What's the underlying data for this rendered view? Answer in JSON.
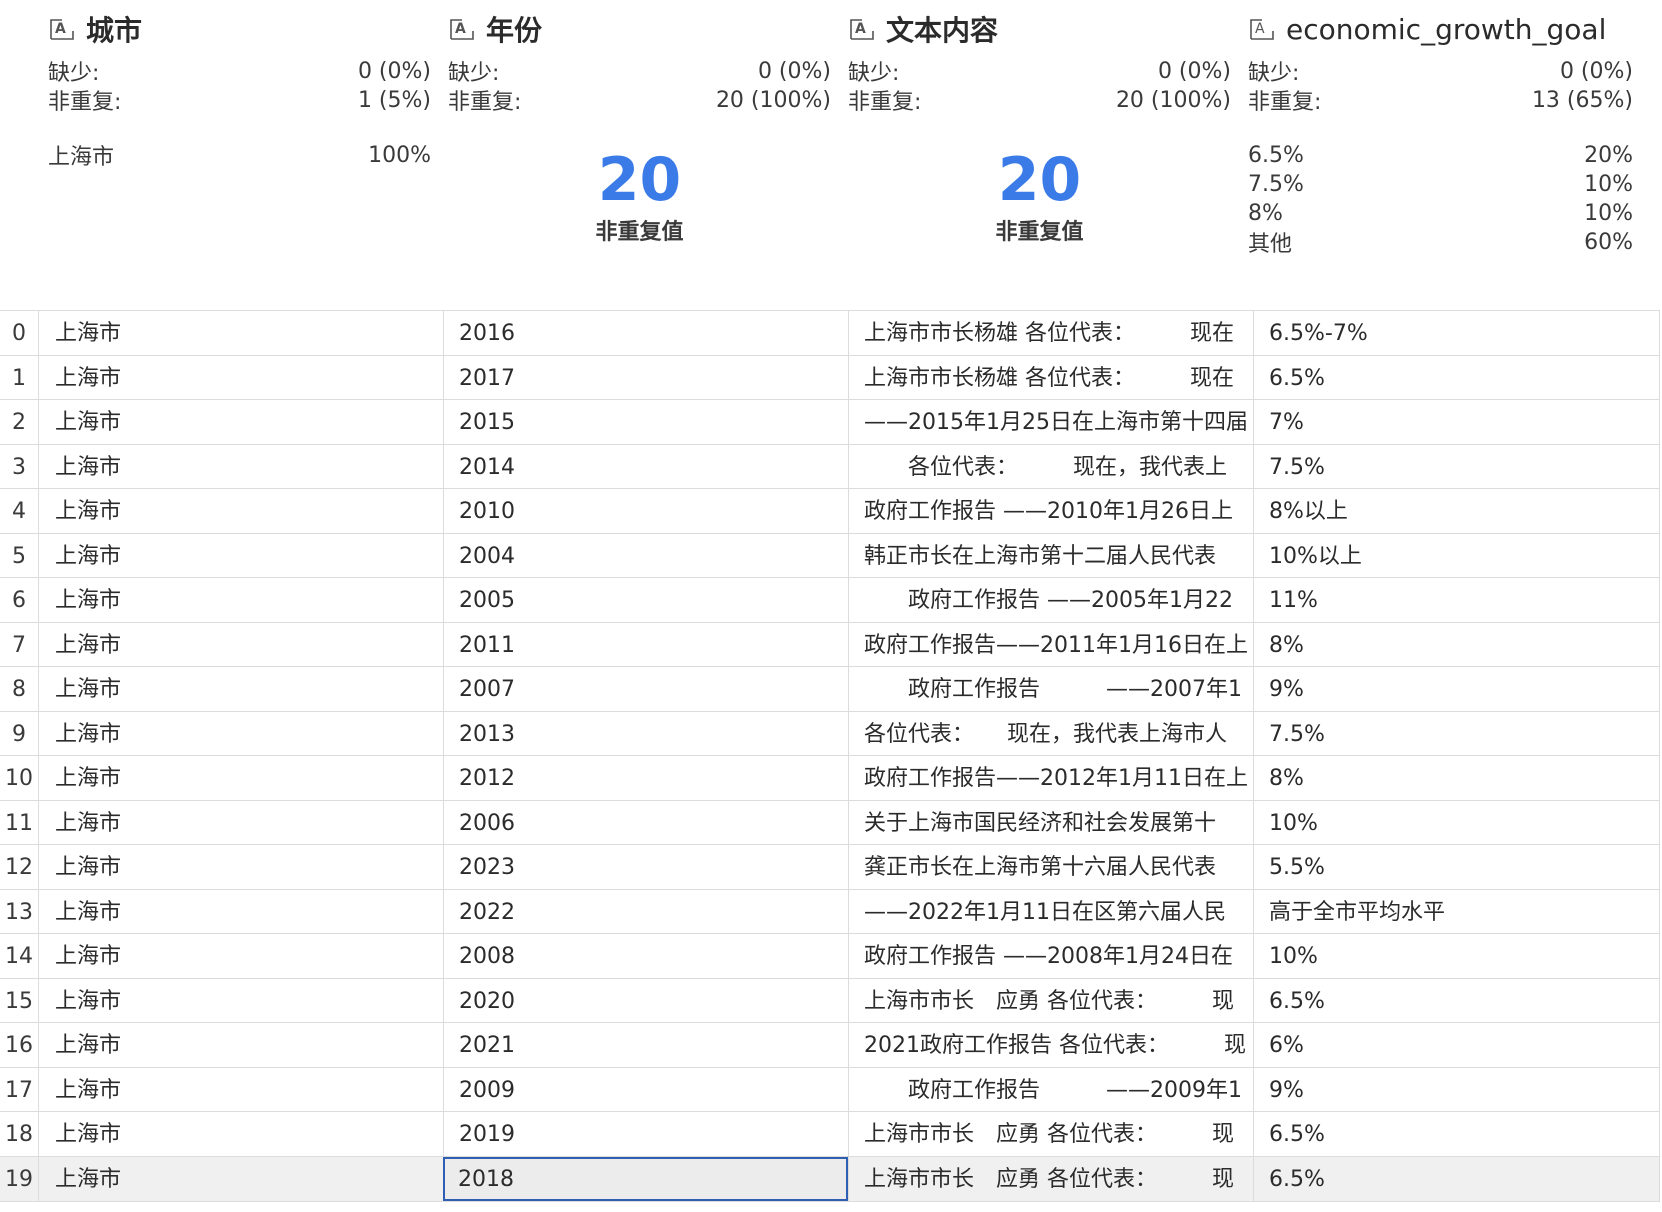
{
  "columns": [
    {
      "title": "城市",
      "missing_label": "缺少:",
      "missing_value": "0 (0%)",
      "distinct_label": "非重复:",
      "distinct_value": "1 (5%)",
      "top_values": [
        {
          "label": "上海市",
          "value": "100%"
        }
      ]
    },
    {
      "title": "年份",
      "missing_label": "缺少:",
      "missing_value": "0 (0%)",
      "distinct_label": "非重复:",
      "distinct_value": "20 (100%)",
      "unique_count": "20",
      "unique_caption": "非重复值"
    },
    {
      "title": "文本内容",
      "missing_label": "缺少:",
      "missing_value": "0 (0%)",
      "distinct_label": "非重复:",
      "distinct_value": "20 (100%)",
      "unique_count": "20",
      "unique_caption": "非重复值"
    },
    {
      "title": "economic_growth_goal",
      "missing_label": "缺少:",
      "missing_value": "0 (0%)",
      "distinct_label": "非重复:",
      "distinct_value": "13 (65%)",
      "top_values": [
        {
          "label": "6.5%",
          "value": "20%"
        },
        {
          "label": "7.5%",
          "value": "10%"
        },
        {
          "label": "8%",
          "value": "10%"
        },
        {
          "label": "其他",
          "value": "60%"
        }
      ]
    }
  ],
  "rows": [
    {
      "index": "0",
      "city": "上海市",
      "year": "2016",
      "text": "上海市市长杨雄 各位代表：　　　现在",
      "goal": "6.5%-7%"
    },
    {
      "index": "1",
      "city": "上海市",
      "year": "2017",
      "text": "上海市市长杨雄 各位代表：　　　现在",
      "goal": "6.5%"
    },
    {
      "index": "2",
      "city": "上海市",
      "year": "2015",
      "text": "——2015年1月25日在上海市第十四届",
      "goal": "7%"
    },
    {
      "index": "3",
      "city": "上海市",
      "year": "2014",
      "text": "　　各位代表：　　　现在，我代表上",
      "goal": "7.5%"
    },
    {
      "index": "4",
      "city": "上海市",
      "year": "2010",
      "text": "政府工作报告 ——2010年1月26日上",
      "goal": "8%以上"
    },
    {
      "index": "5",
      "city": "上海市",
      "year": "2004",
      "text": "韩正市长在上海市第十二届人民代表",
      "goal": "10%以上"
    },
    {
      "index": "6",
      "city": "上海市",
      "year": "2005",
      "text": "　　政府工作报告 ——2005年1月22",
      "goal": "11%"
    },
    {
      "index": "7",
      "city": "上海市",
      "year": "2011",
      "text": "政府工作报告——2011年1月16日在上",
      "goal": "8%"
    },
    {
      "index": "8",
      "city": "上海市",
      "year": "2007",
      "text": "　　政府工作报告　　　——2007年1",
      "goal": "9%"
    },
    {
      "index": "9",
      "city": "上海市",
      "year": "2013",
      "text": "各位代表：　　现在，我代表上海市人",
      "goal": "7.5%"
    },
    {
      "index": "10",
      "city": "上海市",
      "year": "2012",
      "text": "政府工作报告——2012年1月11日在上",
      "goal": "8%"
    },
    {
      "index": "11",
      "city": "上海市",
      "year": "2006",
      "text": "关于上海市国民经济和社会发展第十",
      "goal": "10%"
    },
    {
      "index": "12",
      "city": "上海市",
      "year": "2023",
      "text": "龚正市长在上海市第十六届人民代表",
      "goal": "5.5%"
    },
    {
      "index": "13",
      "city": "上海市",
      "year": "2022",
      "text": " ——2022年1月11日在区第六届人民",
      "goal": "高于全市平均水平"
    },
    {
      "index": "14",
      "city": "上海市",
      "year": "2008",
      "text": "政府工作报告 ——2008年1月24日在",
      "goal": "10%"
    },
    {
      "index": "15",
      "city": "上海市",
      "year": "2020",
      "text": "上海市市长　应勇 各位代表：　　　现",
      "goal": "6.5%"
    },
    {
      "index": "16",
      "city": "上海市",
      "year": "2021",
      "text": "2021政府工作报告 各位代表：　　　现",
      "goal": "6%"
    },
    {
      "index": "17",
      "city": "上海市",
      "year": "2009",
      "text": "　　政府工作报告　　　——2009年1",
      "goal": "9%"
    },
    {
      "index": "18",
      "city": "上海市",
      "year": "2019",
      "text": "上海市市长　应勇 各位代表：　　　现",
      "goal": "6.5%"
    },
    {
      "index": "19",
      "city": "上海市",
      "year": "2018",
      "text": "上海市市长　应勇 各位代表：　　　现",
      "goal": "6.5%"
    }
  ]
}
